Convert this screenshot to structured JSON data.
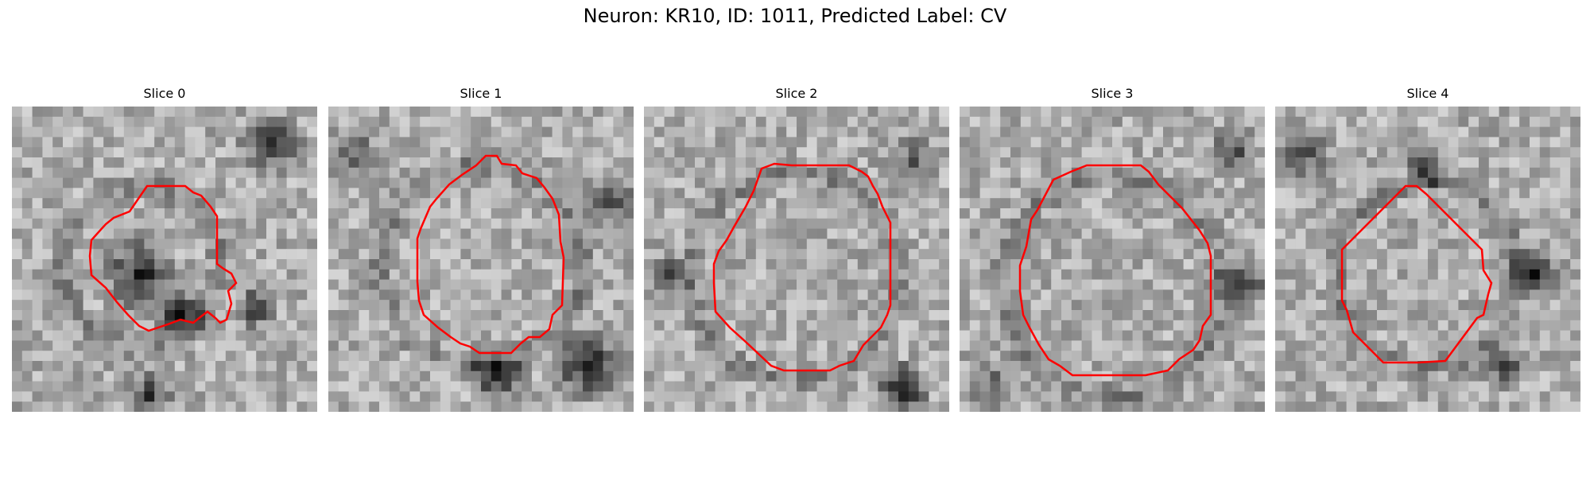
{
  "figure": {
    "title": "Neuron: KR10, ID: 1011, Predicted Label: CV",
    "contour_color": "#ff0000"
  },
  "panels": [
    {
      "title": "Slice 0"
    },
    {
      "title": "Slice 1"
    },
    {
      "title": "Slice 2"
    },
    {
      "title": "Slice 3"
    },
    {
      "title": "Slice 4"
    }
  ]
}
